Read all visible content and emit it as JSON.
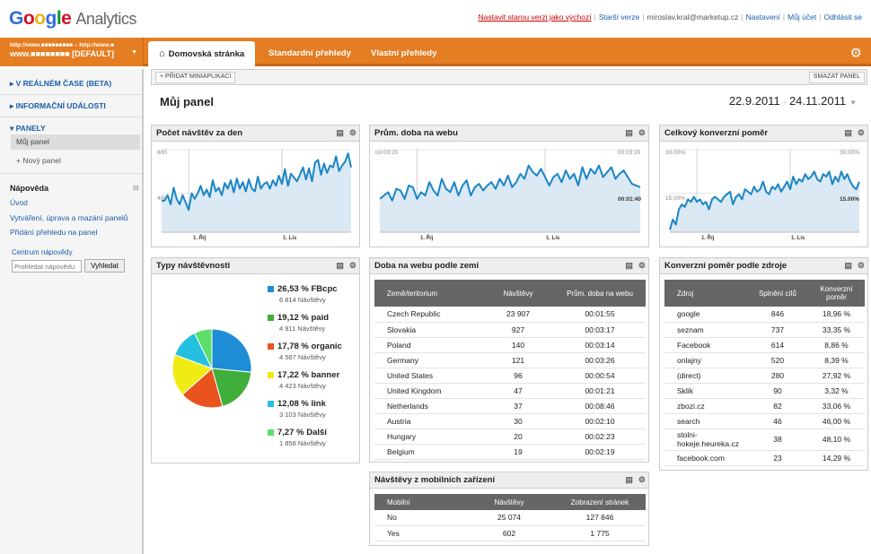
{
  "header": {
    "logo_google": "Google",
    "logo_analytics": "Analytics",
    "links": {
      "old_version": "Nastavit starou verzi jako výchozí",
      "older_version": "Starší verze",
      "email": "miroslav.kral@marketup.cz",
      "settings": "Nastavení",
      "account": "Můj účet",
      "logout": "Odhlásit se"
    }
  },
  "account": {
    "line1": "http://www.■■■■■■■■■ – http://www.■",
    "line2": "www.■■■■■■■■ [DEFAULT]"
  },
  "tabs": [
    "Domovská stránka",
    "Standardní přehledy",
    "Vlastní přehledy"
  ],
  "sidebar": {
    "realtime": "V REÁLNÉM ČASE (BETA)",
    "events": "INFORMAČNÍ UDÁLOSTI",
    "panels": "PANELY",
    "my_panel": "Můj panel",
    "new_panel": "+ Nový panel",
    "help_title": "Nápověda",
    "help_links": [
      "Úvod",
      "Vytváření, úprava a mazání panelů",
      "Přidání přehledu na panel"
    ],
    "help_center": "Centrum nápovědy",
    "search_placeholder": "Prohledat nápovědu",
    "search_button": "Vyhledat"
  },
  "toolbar": {
    "add_mini": "+ PŘIDAT MINIAPLIKACI",
    "delete_panel": "SMAZAT PANEL"
  },
  "panel": {
    "title": "Můj panel",
    "date_from": "22.9.2011",
    "date_sep": "-",
    "date_to": "24.11.2011"
  },
  "widgets": {
    "visits_per_day": {
      "title": "Počet návštěv za den",
      "y_top": "800",
      "y_mid": "400",
      "x_labels": [
        "1. Říj",
        "1. Lis"
      ]
    },
    "avg_time": {
      "title": "Prům. doba na webu",
      "y_top": "00:03:20",
      "y_mid": "00:01:40",
      "x_labels": [
        "1. Říj",
        "1. Lis"
      ]
    },
    "conversion": {
      "title": "Celkový konverzní poměr",
      "y_top": "30.00%",
      "y_mid": "15.00%",
      "x_labels": [
        "1. Říj",
        "1. Lis"
      ]
    },
    "visitor_types": {
      "title": "Typy návštěvnosti",
      "items": [
        {
          "pct": "26,53 %",
          "name": "FBcpc",
          "visits": "6 814 Návštěvy",
          "color": "#1f8dd6",
          "share": 26.53
        },
        {
          "pct": "19,12 %",
          "name": "paid",
          "visits": "4 911 Návštěvy",
          "color": "#3fae3a",
          "share": 19.12
        },
        {
          "pct": "17,78 %",
          "name": "organic",
          "visits": "4 567 Návštěvy",
          "color": "#e8531e",
          "share": 17.78
        },
        {
          "pct": "17,22 %",
          "name": "banner",
          "visits": "4 423 Návštěvy",
          "color": "#f0eb14",
          "share": 17.22
        },
        {
          "pct": "12,08 %",
          "name": "link",
          "visits": "3 103 Návštěvy",
          "color": "#25c0e0",
          "share": 12.08
        },
        {
          "pct": "7,27 %",
          "name": "Další",
          "visits": "1 858 Návštěvy",
          "color": "#5cde6a",
          "share": 7.27
        }
      ]
    },
    "time_by_country": {
      "title": "Doba na webu podle zemí",
      "headers": [
        "Země/teritorium",
        "Návštěvy",
        "Prům. doba na webu"
      ],
      "rows": [
        [
          "Czech Republic",
          "23 907",
          "00:01:55"
        ],
        [
          "Slovakia",
          "927",
          "00:03:17"
        ],
        [
          "Poland",
          "140",
          "00:03:14"
        ],
        [
          "Germany",
          "121",
          "00:03:26"
        ],
        [
          "United States",
          "96",
          "00:00:54"
        ],
        [
          "United Kingdom",
          "47",
          "00:01:21"
        ],
        [
          "Netherlands",
          "37",
          "00:08:46"
        ],
        [
          "Austria",
          "30",
          "00:02:10"
        ],
        [
          "Hungary",
          "20",
          "00:02:23"
        ],
        [
          "Belgium",
          "19",
          "00:02:19"
        ]
      ]
    },
    "conversion_by_source": {
      "title": "Konverzní poměr podle zdroje",
      "headers": [
        "Zdroj",
        "Splnění cílů",
        "Konverzní poměr"
      ],
      "rows": [
        [
          "google",
          "846",
          "18,96 %"
        ],
        [
          "seznam",
          "737",
          "33,35 %"
        ],
        [
          "Facebook",
          "614",
          "8,86 %"
        ],
        [
          "onlajny",
          "520",
          "8,39 %"
        ],
        [
          "(direct)",
          "280",
          "27,92 %"
        ],
        [
          "Sklik",
          "90",
          "3,32 %"
        ],
        [
          "zbozi.cz",
          "82",
          "33,06 %"
        ],
        [
          "search",
          "46",
          "46,00 %"
        ],
        [
          "stolni-hokeje.heureka.cz",
          "38",
          "48,10 %"
        ],
        [
          "facebook.com",
          "23",
          "14,29 %"
        ]
      ]
    },
    "mobile": {
      "title": "Návštěvy z mobilních zařízení",
      "headers": [
        "Mobilní",
        "Návštěvy",
        "Zobrazení stránek"
      ],
      "rows": [
        [
          "No",
          "25 074",
          "127 846"
        ],
        [
          "Yes",
          "602",
          "1 775"
        ]
      ]
    }
  },
  "colors": {
    "orange": "#e57d22",
    "line": "#1a85c6",
    "area": "#dbe9f5",
    "link": "#1a5ea8"
  },
  "chart_data": [
    {
      "type": "area",
      "title": "Počet návštěv za den",
      "ylim": [
        0,
        900
      ],
      "x": [
        "22.9.",
        "23.9.",
        "24.9.",
        "25.9.",
        "26.9.",
        "27.9.",
        "28.9.",
        "29.9.",
        "30.9.",
        "1.10.",
        "2.10.",
        "3.10.",
        "4.10.",
        "5.10.",
        "6.10.",
        "7.10.",
        "8.10.",
        "9.10.",
        "10.10.",
        "11.10.",
        "12.10.",
        "13.10.",
        "14.10.",
        "15.10.",
        "16.10.",
        "17.10.",
        "18.10.",
        "19.10.",
        "20.10.",
        "21.10.",
        "22.10.",
        "23.10.",
        "24.10.",
        "25.10.",
        "26.10.",
        "27.10.",
        "28.10.",
        "29.10.",
        "30.10.",
        "31.10.",
        "1.11.",
        "2.11.",
        "3.11.",
        "4.11.",
        "5.11.",
        "6.11.",
        "7.11.",
        "8.11.",
        "9.11.",
        "10.11.",
        "11.11.",
        "12.11.",
        "13.11.",
        "14.11.",
        "15.11.",
        "16.11.",
        "17.11.",
        "18.11.",
        "19.11.",
        "20.11.",
        "21.11.",
        "22.11.",
        "23.11.",
        "24.11."
      ],
      "values": [
        340,
        340,
        400,
        300,
        480,
        360,
        300,
        400,
        320,
        240,
        420,
        360,
        420,
        500,
        400,
        460,
        380,
        560,
        440,
        480,
        400,
        530,
        470,
        560,
        430,
        580,
        470,
        540,
        440,
        570,
        470,
        440,
        600,
        470,
        520,
        540,
        470,
        560,
        500,
        610,
        520,
        680,
        500,
        630,
        590,
        550,
        620,
        700,
        570,
        690,
        550,
        750,
        780,
        620,
        740,
        640,
        720,
        700,
        820,
        660,
        720,
        760,
        850,
        700
      ]
    },
    {
      "type": "area",
      "title": "Prům. doba na webu",
      "ylim": [
        0,
        250
      ],
      "x": [
        "22.9.",
        "23.9.",
        "24.9.",
        "25.9.",
        "26.9.",
        "27.9.",
        "28.9.",
        "29.9.",
        "30.9.",
        "1.10.",
        "2.10.",
        "3.10.",
        "4.10.",
        "5.10.",
        "6.10.",
        "7.10.",
        "8.10.",
        "9.10.",
        "10.10.",
        "11.10.",
        "12.10.",
        "13.10.",
        "14.10.",
        "15.10.",
        "16.10.",
        "17.10.",
        "18.10.",
        "19.10.",
        "20.10.",
        "21.10.",
        "22.10.",
        "23.10.",
        "24.10.",
        "25.10.",
        "26.10.",
        "27.10.",
        "28.10.",
        "29.10.",
        "30.10.",
        "31.10.",
        "1.11.",
        "2.11.",
        "3.11.",
        "4.11.",
        "5.11.",
        "6.11.",
        "7.11.",
        "8.11.",
        "9.11.",
        "10.11.",
        "11.11.",
        "12.11.",
        "13.11.",
        "14.11.",
        "15.11.",
        "16.11.",
        "17.11.",
        "18.11.",
        "19.11.",
        "20.11.",
        "21.11.",
        "22.11.",
        "23.11.",
        "24.11."
      ],
      "values": [
        100,
        110,
        120,
        95,
        130,
        125,
        100,
        140,
        135,
        100,
        120,
        110,
        150,
        125,
        110,
        160,
        130,
        120,
        150,
        110,
        140,
        155,
        110,
        135,
        145,
        125,
        140,
        150,
        130,
        160,
        140,
        170,
        135,
        150,
        175,
        160,
        200,
        180,
        170,
        190,
        165,
        140,
        165,
        175,
        150,
        185,
        160,
        175,
        140,
        195,
        160,
        190,
        175,
        200,
        165,
        180,
        195,
        160,
        175,
        185,
        165,
        145,
        140,
        135
      ]
    },
    {
      "type": "area",
      "title": "Celkový konverzní poměr",
      "ylim": [
        0,
        33
      ],
      "x": [
        "22.9.",
        "23.9.",
        "24.9.",
        "25.9.",
        "26.9.",
        "27.9.",
        "28.9.",
        "29.9.",
        "30.9.",
        "1.10.",
        "2.10.",
        "3.10.",
        "4.10.",
        "5.10.",
        "6.10.",
        "7.10.",
        "8.10.",
        "9.10.",
        "10.10.",
        "11.10.",
        "12.10.",
        "13.10.",
        "14.10.",
        "15.10.",
        "16.10.",
        "17.10.",
        "18.10.",
        "19.10.",
        "20.10.",
        "21.10.",
        "22.10.",
        "23.10.",
        "24.10.",
        "25.10.",
        "26.10.",
        "27.10.",
        "28.10.",
        "29.10.",
        "30.10.",
        "31.10.",
        "1.11.",
        "2.11.",
        "3.11.",
        "4.11.",
        "5.11.",
        "6.11.",
        "7.11.",
        "8.11.",
        "9.11.",
        "10.11.",
        "11.11.",
        "12.11.",
        "13.11.",
        "14.11.",
        "15.11.",
        "16.11.",
        "17.11.",
        "18.11.",
        "19.11.",
        "20.11.",
        "21.11.",
        "22.11.",
        "23.11.",
        "24.11."
      ],
      "values": [
        1,
        5,
        3,
        9,
        11,
        10,
        13,
        12,
        14,
        12,
        13,
        11,
        12,
        9,
        13,
        14,
        13,
        12,
        14,
        15,
        16,
        11,
        14,
        15,
        13,
        17,
        16,
        15,
        18,
        16,
        17,
        20,
        16,
        15,
        18,
        17,
        19,
        16,
        18,
        20,
        17,
        22,
        19,
        21,
        20,
        23,
        21,
        22,
        24,
        21,
        20,
        23,
        22,
        24,
        19,
        22,
        20,
        24,
        21,
        23,
        20,
        18,
        17,
        20
      ]
    },
    {
      "type": "pie",
      "title": "Typy návštěvnosti",
      "categories": [
        "FBcpc",
        "paid",
        "organic",
        "banner",
        "link",
        "Další"
      ],
      "values": [
        26.53,
        19.12,
        17.78,
        17.22,
        12.08,
        7.27
      ]
    }
  ]
}
